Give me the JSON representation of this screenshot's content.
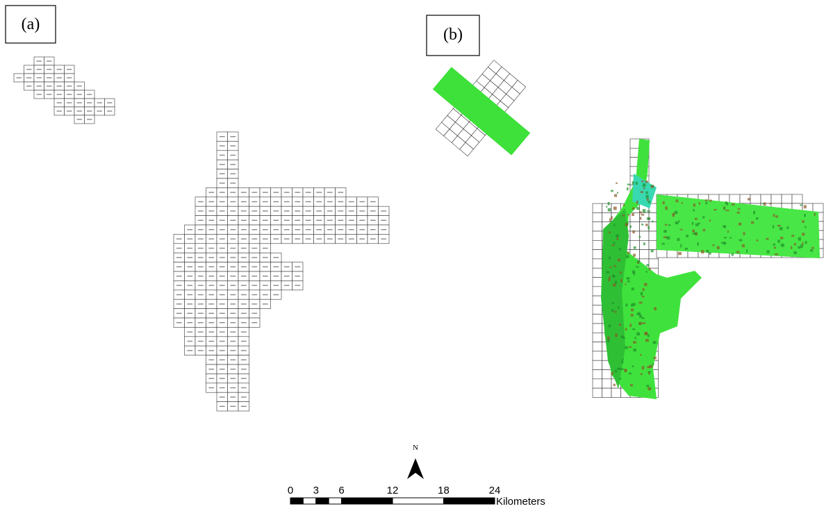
{
  "panels": [
    {
      "label": "(a)"
    },
    {
      "label": "(b)"
    }
  ],
  "north_arrow": {
    "label": "N"
  },
  "scale_bar": {
    "ticks": [
      0,
      3,
      6,
      12,
      18,
      24
    ],
    "unit": "Kilometers"
  }
}
